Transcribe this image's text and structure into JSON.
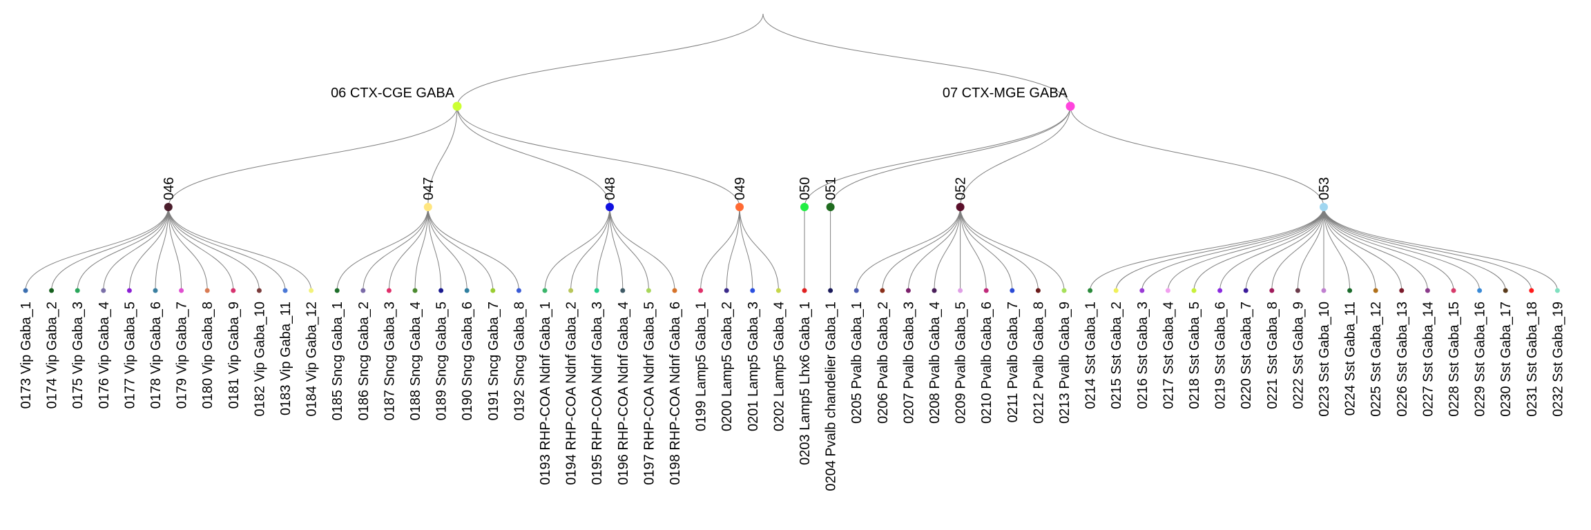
{
  "diagram": {
    "type": "dendrogram",
    "root": {
      "color": "#aaaaaa",
      "children": [
        {
          "label": "06 CTX-CGE GABA",
          "color": "#ccff33",
          "children": [
            {
              "label": "046",
              "color": "#4a1d2b",
              "leaves": [
                {
                  "label": "0173 Vip Gaba_1",
                  "color": "#3b6fb0"
                },
                {
                  "label": "0174 Vip Gaba_2",
                  "color": "#155f1d"
                },
                {
                  "label": "0175 Vip Gaba_3",
                  "color": "#2aa65b"
                },
                {
                  "label": "0176 Vip Gaba_4",
                  "color": "#7a6fa8"
                },
                {
                  "label": "0177 Vip Gaba_5",
                  "color": "#8b1fd4"
                },
                {
                  "label": "0178 Vip Gaba_6",
                  "color": "#3a7fa0"
                },
                {
                  "label": "0179 Vip Gaba_7",
                  "color": "#e04fd0"
                },
                {
                  "label": "0180 Vip Gaba_8",
                  "color": "#d97b53"
                },
                {
                  "label": "0181 Vip Gaba_9",
                  "color": "#d6336f"
                },
                {
                  "label": "0182 Vip Gaba_10",
                  "color": "#7a3b3b"
                },
                {
                  "label": "0183 Vip Gaba_11",
                  "color": "#4a78d6"
                },
                {
                  "label": "0184 Vip Gaba_12",
                  "color": "#f2f27a"
                }
              ]
            },
            {
              "label": "047",
              "color": "#ffe680",
              "leaves": [
                {
                  "label": "0185 Sncg Gaba_1",
                  "color": "#1e6e2a"
                },
                {
                  "label": "0186 Sncg Gaba_2",
                  "color": "#7a6aa8"
                },
                {
                  "label": "0187 Sncg Gaba_3",
                  "color": "#e02f6a"
                },
                {
                  "label": "0188 Sncg Gaba_4",
                  "color": "#4b8a2f"
                },
                {
                  "label": "0189 Sncg Gaba_5",
                  "color": "#1a1a8f"
                },
                {
                  "label": "0190 Sncg Gaba_6",
                  "color": "#2f7fa0"
                },
                {
                  "label": "0191 Sncg Gaba_7",
                  "color": "#9acd32"
                },
                {
                  "label": "0192 Sncg Gaba_8",
                  "color": "#3a5bd6"
                }
              ]
            },
            {
              "label": "048",
              "color": "#1010e0",
              "leaves": [
                {
                  "label": "0193 RHP-COA Ndnf Gaba_1",
                  "color": "#3ab56a"
                },
                {
                  "label": "0194 RHP-COA Ndnf Gaba_2",
                  "color": "#b8c65a"
                },
                {
                  "label": "0195 RHP-COA Ndnf Gaba_3",
                  "color": "#22cc88"
                },
                {
                  "label": "0196 RHP-COA Ndnf Gaba_4",
                  "color": "#3f5a66"
                },
                {
                  "label": "0197 RHP-COA Ndnf Gaba_5",
                  "color": "#a8d65a"
                },
                {
                  "label": "0198 RHP-COA Ndnf Gaba_6",
                  "color": "#d6732a"
                }
              ]
            },
            {
              "label": "049",
              "color": "#ff6a33",
              "leaves": [
                {
                  "label": "0199 Lamp5 Gaba_1",
                  "color": "#e0306a"
                },
                {
                  "label": "0200 Lamp5 Gaba_2",
                  "color": "#3a2a8a"
                },
                {
                  "label": "0201 Lamp5 Gaba_3",
                  "color": "#2a4fe0"
                },
                {
                  "label": "0202 Lamp5 Gaba_4",
                  "color": "#c6d64a"
                }
              ]
            }
          ]
        },
        {
          "label": "07 CTX-MGE GABA",
          "color": "#ff44dd",
          "children": [
            {
              "label": "050",
              "color": "#22ee44",
              "leaves": [
                {
                  "label": "0203 Lamp5 Lhx6 Gaba_1",
                  "color": "#e02020"
                }
              ]
            },
            {
              "label": "051",
              "color": "#1f6b1f",
              "leaves": [
                {
                  "label": "0204 Pvalb chandelier Gaba_1",
                  "color": "#1a1a5a"
                }
              ]
            },
            {
              "label": "052",
              "color": "#5a0f2a",
              "leaves": [
                {
                  "label": "0205 Pvalb Gaba_1",
                  "color": "#4a5ab0"
                },
                {
                  "label": "0206 Pvalb Gaba_2",
                  "color": "#8a2f1a"
                },
                {
                  "label": "0207 Pvalb Gaba_3",
                  "color": "#7a1f6a"
                },
                {
                  "label": "0208 Pvalb Gaba_4",
                  "color": "#4a1f5a"
                },
                {
                  "label": "0209 Pvalb Gaba_5",
                  "color": "#e0a0e6"
                },
                {
                  "label": "0210 Pvalb Gaba_6",
                  "color": "#c02a7a"
                },
                {
                  "label": "0211 Pvalb Gaba_7",
                  "color": "#2a4ad6"
                },
                {
                  "label": "0212 Pvalb Gaba_8",
                  "color": "#6a1a1a"
                },
                {
                  "label": "0213 Pvalb Gaba_9",
                  "color": "#a6e05a"
                }
              ]
            },
            {
              "label": "053",
              "color": "#a0d6f0",
              "leaves": [
                {
                  "label": "0214 Sst Gaba_1",
                  "color": "#2a8a3a"
                },
                {
                  "label": "0215 Sst Gaba_2",
                  "color": "#f0f05a"
                },
                {
                  "label": "0216 Sst Gaba_3",
                  "color": "#9a3ad6"
                },
                {
                  "label": "0217 Sst Gaba_4",
                  "color": "#f2a0f0"
                },
                {
                  "label": "0218 Sst Gaba_5",
                  "color": "#c8f03a"
                },
                {
                  "label": "0219 Sst Gaba_6",
                  "color": "#8a2ae0"
                },
                {
                  "label": "0220 Sst Gaba_7",
                  "color": "#3a1a9a"
                },
                {
                  "label": "0221 Sst Gaba_8",
                  "color": "#a01a5a"
                },
                {
                  "label": "0222 Sst Gaba_9",
                  "color": "#6a3a4a"
                },
                {
                  "label": "0223 Sst Gaba_10",
                  "color": "#c080d0"
                },
                {
                  "label": "0224 Sst Gaba_11",
                  "color": "#1a6a2a"
                },
                {
                  "label": "0225 Sst Gaba_12",
                  "color": "#b0701a"
                },
                {
                  "label": "0226 Sst Gaba_13",
                  "color": "#7a1a2a"
                },
                {
                  "label": "0227 Sst Gaba_14",
                  "color": "#8a3a8a"
                },
                {
                  "label": "0228 Sst Gaba_15",
                  "color": "#d63a6a"
                },
                {
                  "label": "0229 Sst Gaba_16",
                  "color": "#3a8ad6"
                },
                {
                  "label": "0230 Sst Gaba_17",
                  "color": "#5a3a1a"
                },
                {
                  "label": "0231 Sst Gaba_18",
                  "color": "#ff1a1a"
                },
                {
                  "label": "0232 Sst Gaba_19",
                  "color": "#80e0c0"
                }
              ]
            }
          ]
        }
      ]
    }
  }
}
